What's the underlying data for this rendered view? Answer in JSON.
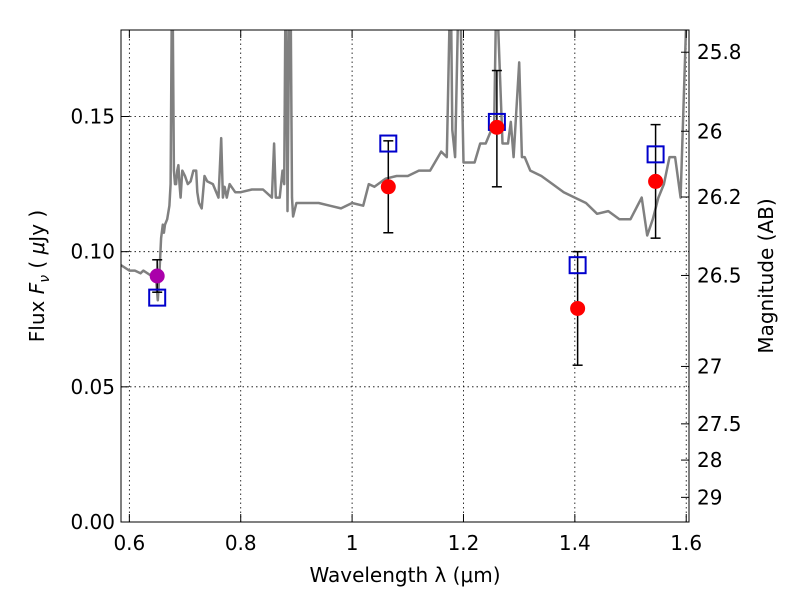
{
  "chart_data": {
    "type": "scatter",
    "xlabel": "Wavelength  λ (μm)",
    "ylabel_parts": {
      "pre": "Flux  ",
      "symbol": "F",
      "subscript": "ν",
      "mid": " ( ",
      "mu": "μ",
      "post": "Jy )"
    },
    "y2label": "Magnitude (AB)",
    "xlim": [
      0.585,
      1.605
    ],
    "ylim": [
      0.0,
      0.182
    ],
    "grid": true,
    "x_ticks": [
      {
        "value": 0.6,
        "label": "0.6"
      },
      {
        "value": 0.8,
        "label": "0.8"
      },
      {
        "value": 1.0,
        "label": "1"
      },
      {
        "value": 1.2,
        "label": "1.2"
      },
      {
        "value": 1.4,
        "label": "1.4"
      },
      {
        "value": 1.6,
        "label": "1.6"
      }
    ],
    "y_ticks": [
      {
        "value": 0.0,
        "label": "0.00"
      },
      {
        "value": 0.05,
        "label": "0.05"
      },
      {
        "value": 0.1,
        "label": "0.10"
      },
      {
        "value": 0.15,
        "label": "0.15"
      }
    ],
    "y2_ticks": [
      {
        "magnitude": 25.8,
        "label": "25.8"
      },
      {
        "magnitude": 26.0,
        "label": "26"
      },
      {
        "magnitude": 26.2,
        "label": "26.2"
      },
      {
        "magnitude": 26.5,
        "label": "26.5"
      },
      {
        "magnitude": 27.0,
        "label": "27"
      },
      {
        "magnitude": 27.5,
        "label": "27.5"
      },
      {
        "magnitude": 28.0,
        "label": "28"
      },
      {
        "magnitude": 29.0,
        "label": "29"
      }
    ],
    "colors": {
      "spectrum": "#808080",
      "observed": "#ff0000",
      "observed_optical": "#aa00aa",
      "model": "#0000cc",
      "errorbar": "#000000"
    },
    "series": [
      {
        "kind": "model_spectrum",
        "x": [
          0.585,
          0.6,
          0.61,
          0.62,
          0.625,
          0.64,
          0.645,
          0.648,
          0.651,
          0.654,
          0.657,
          0.66,
          0.662,
          0.664,
          0.668,
          0.672,
          0.674,
          0.676,
          0.678,
          0.68,
          0.682,
          0.684,
          0.686,
          0.688,
          0.69,
          0.692,
          0.695,
          0.7,
          0.705,
          0.71,
          0.715,
          0.72,
          0.722,
          0.725,
          0.73,
          0.735,
          0.74,
          0.75,
          0.76,
          0.765,
          0.768,
          0.771,
          0.775,
          0.78,
          0.79,
          0.8,
          0.82,
          0.84,
          0.856,
          0.86,
          0.863,
          0.866,
          0.87,
          0.875,
          0.878,
          0.88,
          0.882,
          0.884,
          0.887,
          0.89,
          0.892,
          0.894,
          0.9,
          0.92,
          0.94,
          0.96,
          0.98,
          1.0,
          1.02,
          1.03,
          1.04,
          1.06,
          1.08,
          1.1,
          1.12,
          1.14,
          1.16,
          1.17,
          1.175,
          1.178,
          1.18,
          1.185,
          1.19,
          1.195,
          1.2,
          1.21,
          1.22,
          1.23,
          1.24,
          1.25,
          1.255,
          1.258,
          1.262,
          1.27,
          1.28,
          1.285,
          1.29,
          1.3,
          1.305,
          1.31,
          1.32,
          1.34,
          1.36,
          1.38,
          1.4,
          1.42,
          1.44,
          1.46,
          1.48,
          1.5,
          1.52,
          1.53,
          1.54,
          1.55,
          1.56,
          1.57,
          1.58,
          1.59,
          1.6,
          1.605
        ],
        "y": [
          0.095,
          0.093,
          0.093,
          0.092,
          0.093,
          0.091,
          0.092,
          0.09,
          0.082,
          0.092,
          0.105,
          0.11,
          0.107,
          0.11,
          0.112,
          0.117,
          0.125,
          0.185,
          0.185,
          0.13,
          0.125,
          0.125,
          0.13,
          0.132,
          0.125,
          0.12,
          0.13,
          0.128,
          0.125,
          0.126,
          0.13,
          0.13,
          0.122,
          0.118,
          0.116,
          0.128,
          0.126,
          0.125,
          0.12,
          0.142,
          0.12,
          0.124,
          0.12,
          0.125,
          0.122,
          0.122,
          0.123,
          0.123,
          0.12,
          0.14,
          0.12,
          0.12,
          0.12,
          0.13,
          0.125,
          0.185,
          0.185,
          0.115,
          0.185,
          0.185,
          0.12,
          0.113,
          0.118,
          0.118,
          0.118,
          0.117,
          0.116,
          0.118,
          0.117,
          0.125,
          0.124,
          0.127,
          0.128,
          0.128,
          0.13,
          0.13,
          0.137,
          0.135,
          0.185,
          0.185,
          0.145,
          0.135,
          0.185,
          0.185,
          0.133,
          0.133,
          0.133,
          0.14,
          0.14,
          0.145,
          0.145,
          0.185,
          0.185,
          0.14,
          0.14,
          0.148,
          0.135,
          0.17,
          0.135,
          0.135,
          0.13,
          0.128,
          0.125,
          0.122,
          0.12,
          0.118,
          0.114,
          0.115,
          0.112,
          0.112,
          0.12,
          0.106,
          0.112,
          0.12,
          0.125,
          0.135,
          0.135,
          0.12,
          0.185,
          0.185
        ]
      },
      {
        "kind": "observed_photometry",
        "points": [
          {
            "x": 0.65,
            "y": 0.091,
            "err_low": 0.085,
            "err_high": 0.097,
            "color": "#aa00aa"
          },
          {
            "x": 1.065,
            "y": 0.124,
            "err_low": 0.107,
            "err_high": 0.141,
            "color": "#ff0000"
          },
          {
            "x": 1.26,
            "y": 0.146,
            "err_low": 0.124,
            "err_high": 0.167,
            "color": "#ff0000"
          },
          {
            "x": 1.405,
            "y": 0.079,
            "err_low": 0.058,
            "err_high": 0.1,
            "color": "#ff0000"
          },
          {
            "x": 1.545,
            "y": 0.126,
            "err_low": 0.105,
            "err_high": 0.147,
            "color": "#ff0000"
          }
        ]
      },
      {
        "kind": "model_photometry",
        "points": [
          {
            "x": 0.65,
            "y": 0.083
          },
          {
            "x": 1.065,
            "y": 0.14
          },
          {
            "x": 1.26,
            "y": 0.148
          },
          {
            "x": 1.405,
            "y": 0.095
          },
          {
            "x": 1.545,
            "y": 0.136
          }
        ]
      }
    ]
  }
}
